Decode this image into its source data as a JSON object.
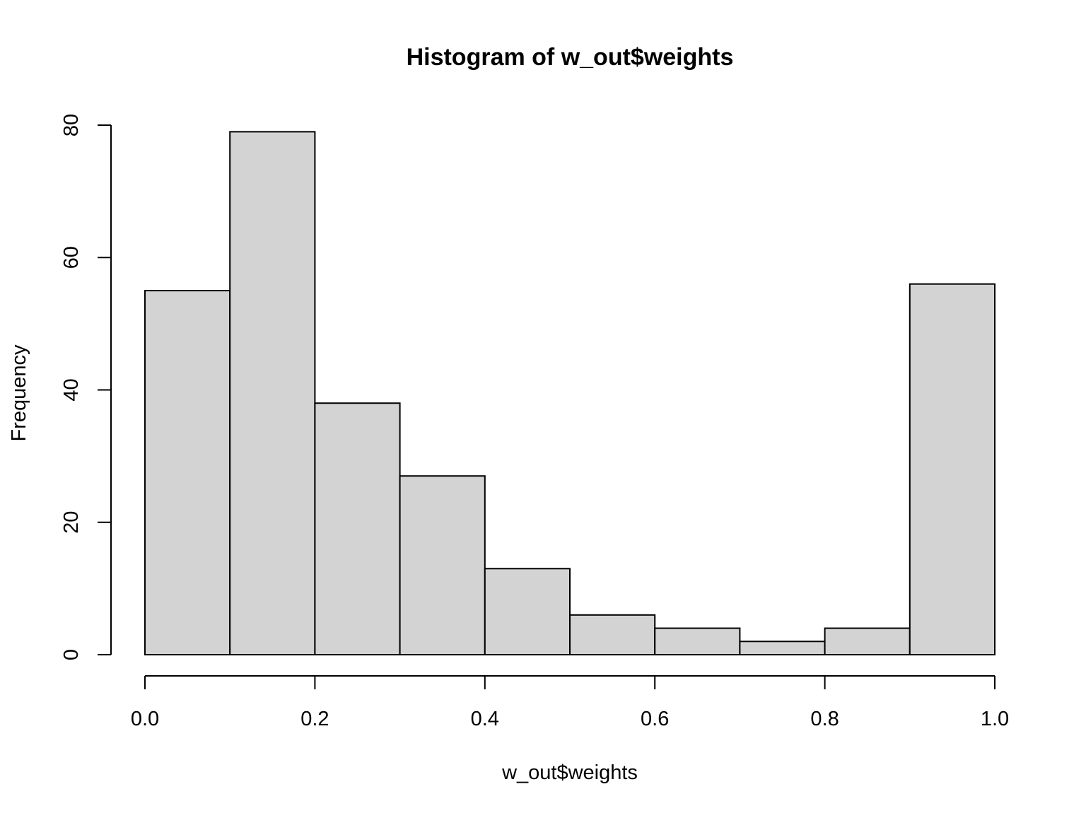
{
  "chart_data": {
    "type": "bar",
    "subtype": "histogram",
    "title": "Histogram of w_out$weights",
    "xlabel": "w_out$weights",
    "ylabel": "Frequency",
    "bins": [
      {
        "from": 0.0,
        "to": 0.1,
        "count": 55
      },
      {
        "from": 0.1,
        "to": 0.2,
        "count": 79
      },
      {
        "from": 0.2,
        "to": 0.3,
        "count": 38
      },
      {
        "from": 0.3,
        "to": 0.4,
        "count": 27
      },
      {
        "from": 0.4,
        "to": 0.5,
        "count": 13
      },
      {
        "from": 0.5,
        "to": 0.6,
        "count": 6
      },
      {
        "from": 0.6,
        "to": 0.7,
        "count": 4
      },
      {
        "from": 0.7,
        "to": 0.8,
        "count": 2
      },
      {
        "from": 0.8,
        "to": 0.9,
        "count": 4
      },
      {
        "from": 0.9,
        "to": 1.0,
        "count": 56
      }
    ],
    "xlim": [
      0.0,
      1.0
    ],
    "ylim": [
      0,
      80
    ],
    "xticks": [
      0.0,
      0.2,
      0.4,
      0.6,
      0.8,
      1.0
    ],
    "xtick_labels": [
      "0.0",
      "0.2",
      "0.4",
      "0.6",
      "0.8",
      "1.0"
    ],
    "yticks": [
      0,
      20,
      40,
      60,
      80
    ],
    "ytick_labels": [
      "0",
      "20",
      "40",
      "60",
      "80"
    ],
    "grid": false,
    "legend": "none",
    "colors": {
      "bar_fill": "#d3d3d3",
      "bar_stroke": "#000000",
      "axis": "#000000",
      "background": "#ffffff"
    }
  }
}
